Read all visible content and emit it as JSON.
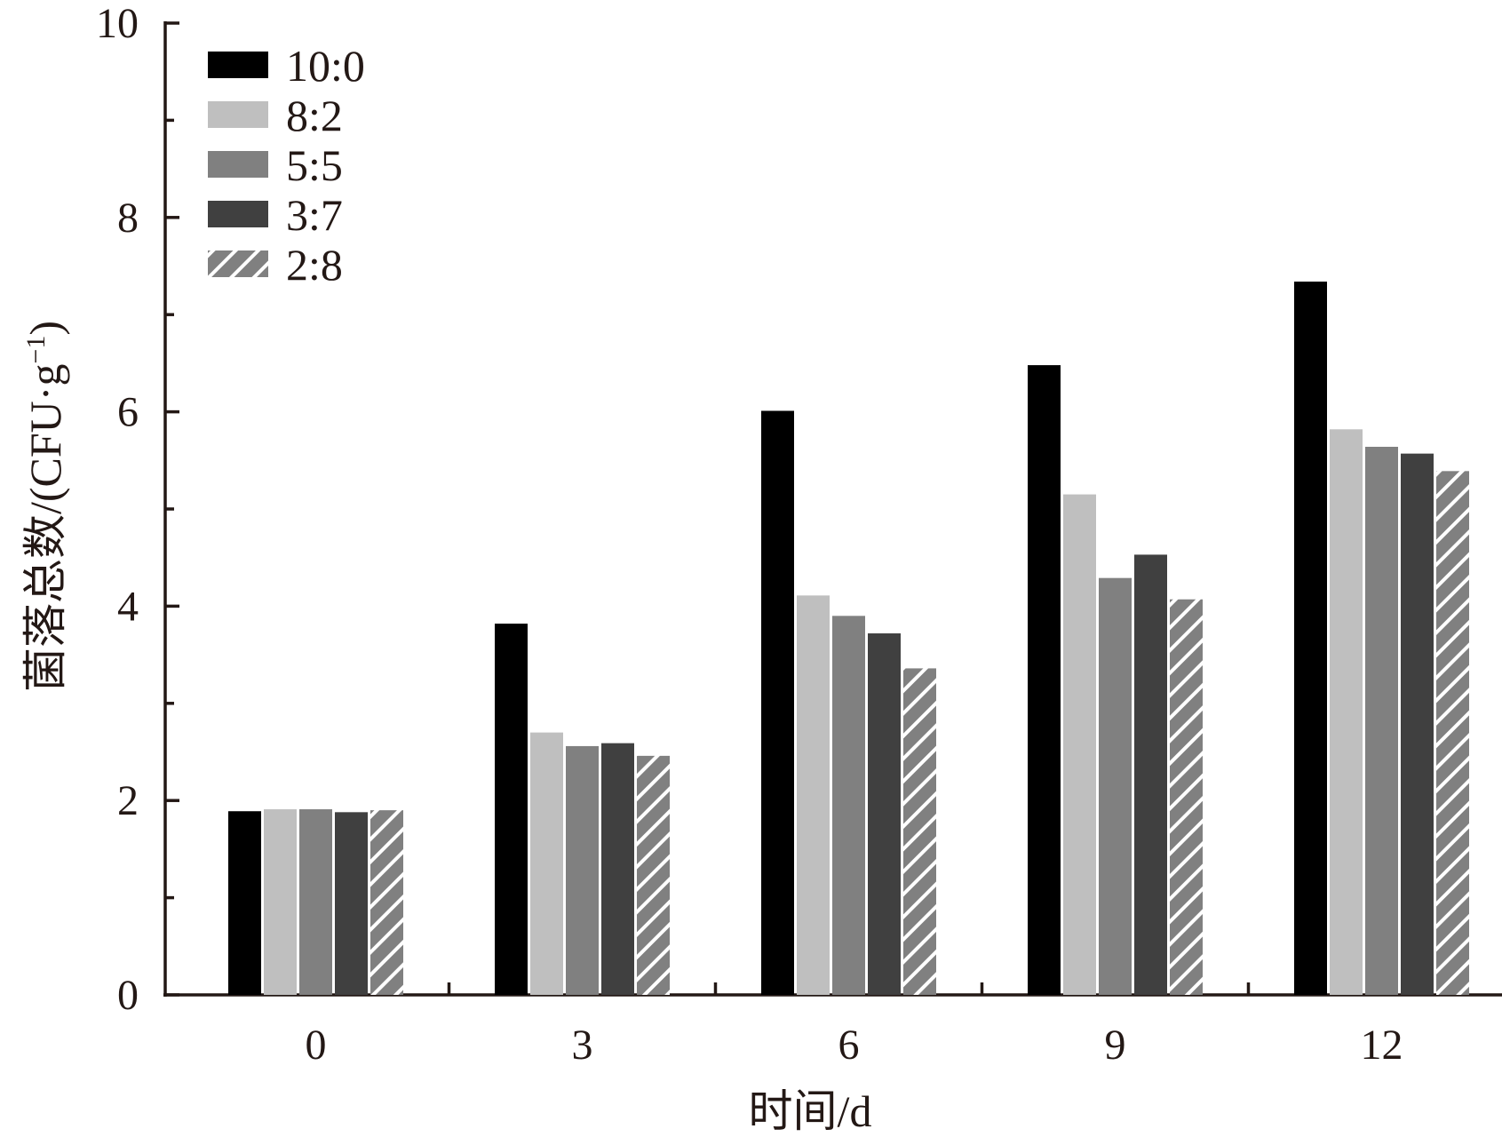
{
  "chart_data": {
    "type": "bar",
    "title": "",
    "xlabel": "时间/d",
    "ylabel": "菌落总数/(CFU·g",
    "ylabel_sup": "−1",
    "ylabel_close": ")",
    "categories": [
      "0",
      "3",
      "6",
      "9",
      "12"
    ],
    "ylim": [
      0,
      10
    ],
    "yticks": [
      "0",
      "2",
      "4",
      "6",
      "8",
      "10"
    ],
    "legend_position": "top-left",
    "series": [
      {
        "name": "10:0",
        "color": "#000000",
        "pattern": "solid",
        "values": [
          1.89,
          3.82,
          6.01,
          6.48,
          7.34
        ]
      },
      {
        "name": "8:2",
        "color": "#bfbfbf",
        "pattern": "solid",
        "values": [
          1.91,
          2.7,
          4.11,
          5.15,
          5.82
        ]
      },
      {
        "name": "5:5",
        "color": "#808080",
        "pattern": "solid",
        "values": [
          1.91,
          2.56,
          3.9,
          4.29,
          5.64
        ]
      },
      {
        "name": "3:7",
        "color": "#404040",
        "pattern": "solid",
        "values": [
          1.88,
          2.59,
          3.72,
          4.53,
          5.57
        ]
      },
      {
        "name": "2:8",
        "color": "#808080",
        "pattern": "hatch",
        "values": [
          1.9,
          2.46,
          3.36,
          4.07,
          5.39
        ]
      }
    ]
  }
}
